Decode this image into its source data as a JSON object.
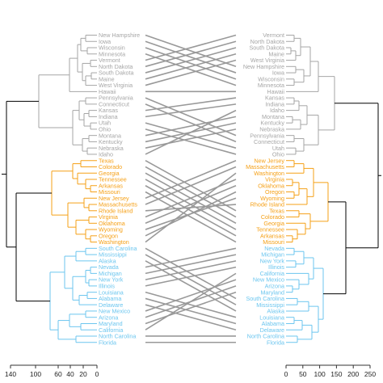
{
  "chart_data": {
    "type": "tanglegram",
    "clusters": [
      {
        "name": "grey",
        "color": "#a6a6a6"
      },
      {
        "name": "orange",
        "color": "#f5a017"
      },
      {
        "name": "blue",
        "color": "#6cc6ef"
      }
    ],
    "left_tree": {
      "axis": {
        "ticks": [
          140,
          100,
          60,
          40,
          20,
          0
        ],
        "range": [
          140,
          0
        ]
      },
      "leaves": [
        {
          "label": "New Hampshire",
          "cluster": "grey"
        },
        {
          "label": "Iowa",
          "cluster": "grey"
        },
        {
          "label": "Wisconsin",
          "cluster": "grey"
        },
        {
          "label": "Minnesota",
          "cluster": "grey"
        },
        {
          "label": "Vermont",
          "cluster": "grey"
        },
        {
          "label": "North Dakota",
          "cluster": "grey"
        },
        {
          "label": "South Dakota",
          "cluster": "grey"
        },
        {
          "label": "Maine",
          "cluster": "grey"
        },
        {
          "label": "West Virginia",
          "cluster": "grey"
        },
        {
          "label": "Hawaii",
          "cluster": "grey"
        },
        {
          "label": "Pennsylvania",
          "cluster": "grey"
        },
        {
          "label": "Connecticut",
          "cluster": "grey"
        },
        {
          "label": "Kansas",
          "cluster": "grey"
        },
        {
          "label": "Indiana",
          "cluster": "grey"
        },
        {
          "label": "Utah",
          "cluster": "grey"
        },
        {
          "label": "Ohio",
          "cluster": "grey"
        },
        {
          "label": "Montana",
          "cluster": "grey"
        },
        {
          "label": "Kentucky",
          "cluster": "grey"
        },
        {
          "label": "Nebraska",
          "cluster": "grey"
        },
        {
          "label": "Idaho",
          "cluster": "grey"
        },
        {
          "label": "Texas",
          "cluster": "orange"
        },
        {
          "label": "Colorado",
          "cluster": "orange"
        },
        {
          "label": "Georgia",
          "cluster": "orange"
        },
        {
          "label": "Tennessee",
          "cluster": "orange"
        },
        {
          "label": "Arkansas",
          "cluster": "orange"
        },
        {
          "label": "Missouri",
          "cluster": "orange"
        },
        {
          "label": "New Jersey",
          "cluster": "orange"
        },
        {
          "label": "Massachusetts",
          "cluster": "orange"
        },
        {
          "label": "Rhode Island",
          "cluster": "orange"
        },
        {
          "label": "Virginia",
          "cluster": "orange"
        },
        {
          "label": "Oklahoma",
          "cluster": "orange"
        },
        {
          "label": "Wyoming",
          "cluster": "orange"
        },
        {
          "label": "Oregon",
          "cluster": "orange"
        },
        {
          "label": "Washington",
          "cluster": "orange"
        },
        {
          "label": "South Carolina",
          "cluster": "blue"
        },
        {
          "label": "Mississippi",
          "cluster": "blue"
        },
        {
          "label": "Alaska",
          "cluster": "blue"
        },
        {
          "label": "Nevada",
          "cluster": "blue"
        },
        {
          "label": "Michigan",
          "cluster": "blue"
        },
        {
          "label": "New York",
          "cluster": "blue"
        },
        {
          "label": "Illinois",
          "cluster": "blue"
        },
        {
          "label": "Louisiana",
          "cluster": "blue"
        },
        {
          "label": "Alabama",
          "cluster": "blue"
        },
        {
          "label": "Delaware",
          "cluster": "blue"
        },
        {
          "label": "New Mexico",
          "cluster": "blue"
        },
        {
          "label": "Arizona",
          "cluster": "blue"
        },
        {
          "label": "Maryland",
          "cluster": "blue"
        },
        {
          "label": "California",
          "cluster": "blue"
        },
        {
          "label": "North Carolina",
          "cluster": "blue"
        },
        {
          "label": "Florida",
          "cluster": "blue"
        }
      ]
    },
    "right_tree": {
      "axis": {
        "ticks": [
          0,
          50,
          100,
          150,
          200,
          250
        ],
        "range": [
          0,
          280
        ]
      },
      "leaves": [
        {
          "label": "Vermont",
          "cluster": "grey"
        },
        {
          "label": "North Dakota",
          "cluster": "grey"
        },
        {
          "label": "South Dakota",
          "cluster": "grey"
        },
        {
          "label": "Maine",
          "cluster": "grey"
        },
        {
          "label": "West Virginia",
          "cluster": "grey"
        },
        {
          "label": "New Hampshire",
          "cluster": "grey"
        },
        {
          "label": "Iowa",
          "cluster": "grey"
        },
        {
          "label": "Wisconsin",
          "cluster": "grey"
        },
        {
          "label": "Minnesota",
          "cluster": "grey"
        },
        {
          "label": "Hawaii",
          "cluster": "grey"
        },
        {
          "label": "Kansas",
          "cluster": "grey"
        },
        {
          "label": "Indiana",
          "cluster": "grey"
        },
        {
          "label": "Idaho",
          "cluster": "grey"
        },
        {
          "label": "Montana",
          "cluster": "grey"
        },
        {
          "label": "Kentucky",
          "cluster": "grey"
        },
        {
          "label": "Nebraska",
          "cluster": "grey"
        },
        {
          "label": "Pennsylvania",
          "cluster": "grey"
        },
        {
          "label": "Connecticut",
          "cluster": "grey"
        },
        {
          "label": "Utah",
          "cluster": "grey"
        },
        {
          "label": "Ohio",
          "cluster": "grey"
        },
        {
          "label": "New Jersey",
          "cluster": "orange"
        },
        {
          "label": "Massachusetts",
          "cluster": "orange"
        },
        {
          "label": "Washington",
          "cluster": "orange"
        },
        {
          "label": "Virginia",
          "cluster": "orange"
        },
        {
          "label": "Oklahoma",
          "cluster": "orange"
        },
        {
          "label": "Oregon",
          "cluster": "orange"
        },
        {
          "label": "Wyoming",
          "cluster": "orange"
        },
        {
          "label": "Rhode Island",
          "cluster": "orange"
        },
        {
          "label": "Texas",
          "cluster": "orange"
        },
        {
          "label": "Colorado",
          "cluster": "orange"
        },
        {
          "label": "Georgia",
          "cluster": "orange"
        },
        {
          "label": "Tennessee",
          "cluster": "orange"
        },
        {
          "label": "Arkansas",
          "cluster": "orange"
        },
        {
          "label": "Missouri",
          "cluster": "orange"
        },
        {
          "label": "Nevada",
          "cluster": "blue"
        },
        {
          "label": "Michigan",
          "cluster": "blue"
        },
        {
          "label": "New York",
          "cluster": "blue"
        },
        {
          "label": "Illinois",
          "cluster": "blue"
        },
        {
          "label": "California",
          "cluster": "blue"
        },
        {
          "label": "New Mexico",
          "cluster": "blue"
        },
        {
          "label": "Arizona",
          "cluster": "blue"
        },
        {
          "label": "Maryland",
          "cluster": "blue"
        },
        {
          "label": "South Carolina",
          "cluster": "blue"
        },
        {
          "label": "Mississippi",
          "cluster": "blue"
        },
        {
          "label": "Alaska",
          "cluster": "blue"
        },
        {
          "label": "Louisiana",
          "cluster": "blue"
        },
        {
          "label": "Alabama",
          "cluster": "blue"
        },
        {
          "label": "Delaware",
          "cluster": "blue"
        },
        {
          "label": "North Carolina",
          "cluster": "blue"
        },
        {
          "label": "Florida",
          "cluster": "blue"
        }
      ]
    },
    "connector_color": "#999999",
    "root_color": "#000000"
  }
}
